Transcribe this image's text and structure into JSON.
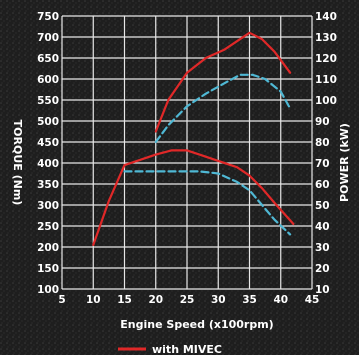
{
  "chart_data": {
    "type": "line",
    "xlabel": "Engine Speed (x100rpm)",
    "ylabel_left": "TORQUE (Nm)",
    "ylabel_right": "POWER (kW)",
    "xlim": [
      5,
      45
    ],
    "ylim_left": [
      100,
      750
    ],
    "ylim_right": [
      10,
      140
    ],
    "x_ticks": [
      5,
      10,
      15,
      20,
      25,
      30,
      35,
      40,
      45
    ],
    "y_ticks_left": [
      100,
      150,
      200,
      250,
      300,
      350,
      400,
      450,
      500,
      550,
      600,
      650,
      700,
      750
    ],
    "y_ticks_right": [
      10,
      20,
      30,
      40,
      50,
      60,
      70,
      80,
      90,
      100,
      110,
      120,
      130,
      140
    ],
    "grid": true,
    "legend_position": "bottom-center",
    "series": [
      {
        "name": "with MIVEC",
        "color": "#e02828",
        "style": "solid",
        "axis": "right",
        "x": [
          20,
          22,
          25,
          28,
          31,
          33,
          35,
          37,
          39,
          41.5
        ],
        "y": [
          85,
          100,
          113,
          120,
          124,
          128,
          132,
          129,
          123,
          113
        ]
      },
      {
        "color": "#e02828",
        "style": "solid",
        "axis": "left",
        "x": [
          10,
          12.5,
          15,
          17,
          20,
          22.5,
          25,
          27,
          30,
          33,
          35,
          37,
          39,
          42
        ],
        "y": [
          205,
          310,
          395,
          405,
          420,
          430,
          430,
          420,
          405,
          390,
          370,
          340,
          305,
          255
        ]
      },
      {
        "color": "#4fb8d4",
        "style": "dashed",
        "axis": "right",
        "x": [
          20,
          22,
          25,
          28,
          31,
          33.5,
          35.5,
          37.5,
          40,
          41.5
        ],
        "y": [
          80,
          88,
          97,
          103,
          108,
          112,
          112,
          110,
          104,
          96
        ]
      },
      {
        "color": "#4fb8d4",
        "style": "dashed",
        "axis": "left",
        "x": [
          15,
          17,
          20,
          22.5,
          25,
          27,
          30,
          33,
          35,
          37,
          39,
          41.5
        ],
        "y": [
          380,
          380,
          380,
          380,
          380,
          380,
          375,
          355,
          335,
          300,
          265,
          230
        ]
      }
    ]
  }
}
